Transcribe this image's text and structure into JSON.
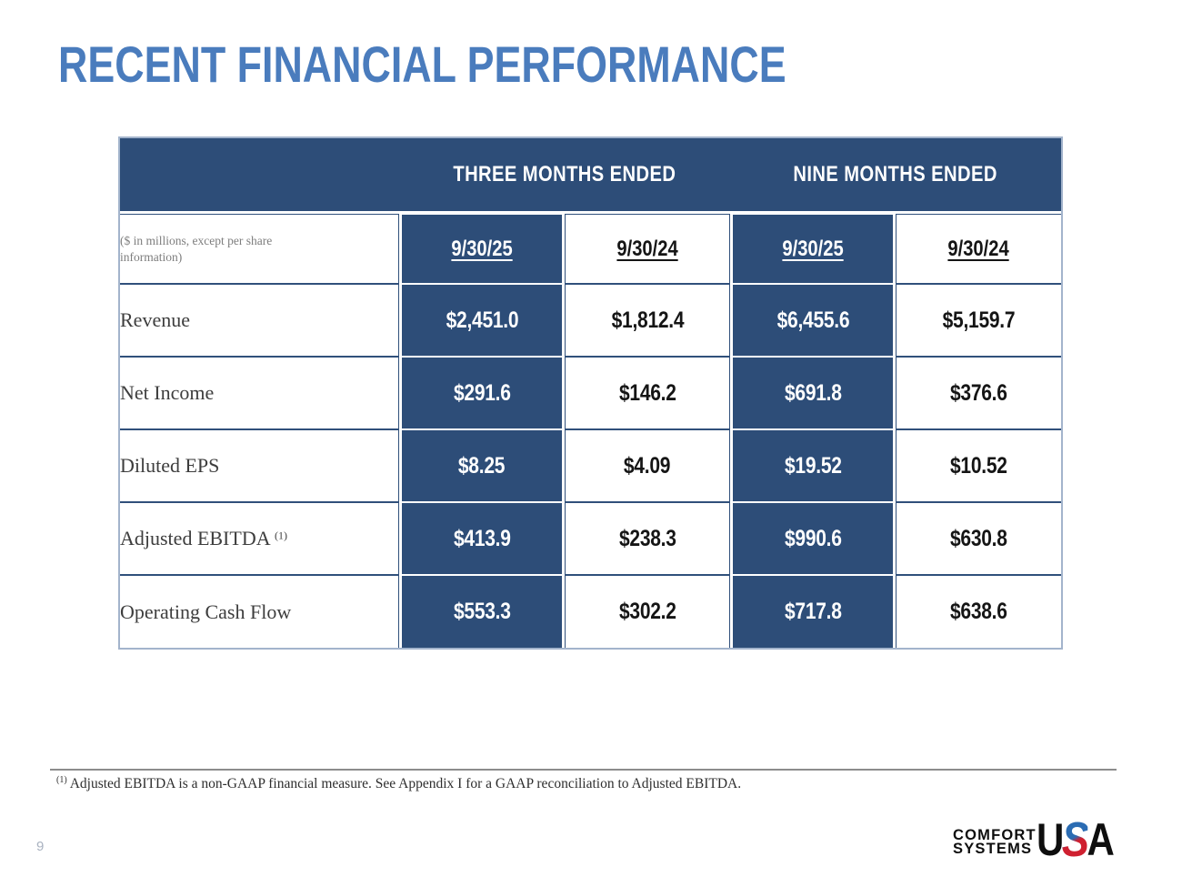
{
  "title": "RECENT FINANCIAL PERFORMANCE",
  "table": {
    "group_headers": [
      "THREE MONTHS ENDED",
      "NINE MONTHS ENDED"
    ],
    "note": "($ in millions, except per share information)",
    "columns": [
      "9/30/25",
      "9/30/24",
      "9/30/25",
      "9/30/24"
    ],
    "rows": [
      {
        "label": "Revenue",
        "values": [
          "$2,451.0",
          "$1,812.4",
          "$6,455.6",
          "$5,159.7"
        ]
      },
      {
        "label": "Net Income",
        "values": [
          "$291.6",
          "$146.2",
          "$691.8",
          "$376.6"
        ]
      },
      {
        "label": "Diluted EPS",
        "values": [
          "$8.25",
          "$4.09",
          "$19.52",
          "$10.52"
        ]
      },
      {
        "label": "Adjusted EBITDA",
        "label_superscript": "(1)",
        "values": [
          "$413.9",
          "$238.3",
          "$990.6",
          "$630.8"
        ]
      },
      {
        "label": "Operating Cash Flow",
        "values": [
          "$553.3",
          "$302.2",
          "$717.8",
          "$638.6"
        ]
      }
    ]
  },
  "footnote": {
    "superscript": "(1)",
    "text": "Adjusted EBITDA is a non-GAAP financial measure. See Appendix I for a GAAP reconciliation to Adjusted EBITDA."
  },
  "page_number": "9",
  "logo": {
    "company_line1": "COMFORT",
    "company_line2": "SYSTEMS",
    "usa_u": "U",
    "usa_s": "S",
    "usa_a": "A"
  },
  "colors": {
    "title_blue": "#4a7cbd",
    "table_dark_blue": "#2d4d78",
    "table_border_dark": "#30507b",
    "table_border_light": "#a3b4cc",
    "footnote_rule_gray": "#8c8c8c",
    "logo_red": "#cf2030",
    "logo_blue": "#2b6cb3"
  }
}
